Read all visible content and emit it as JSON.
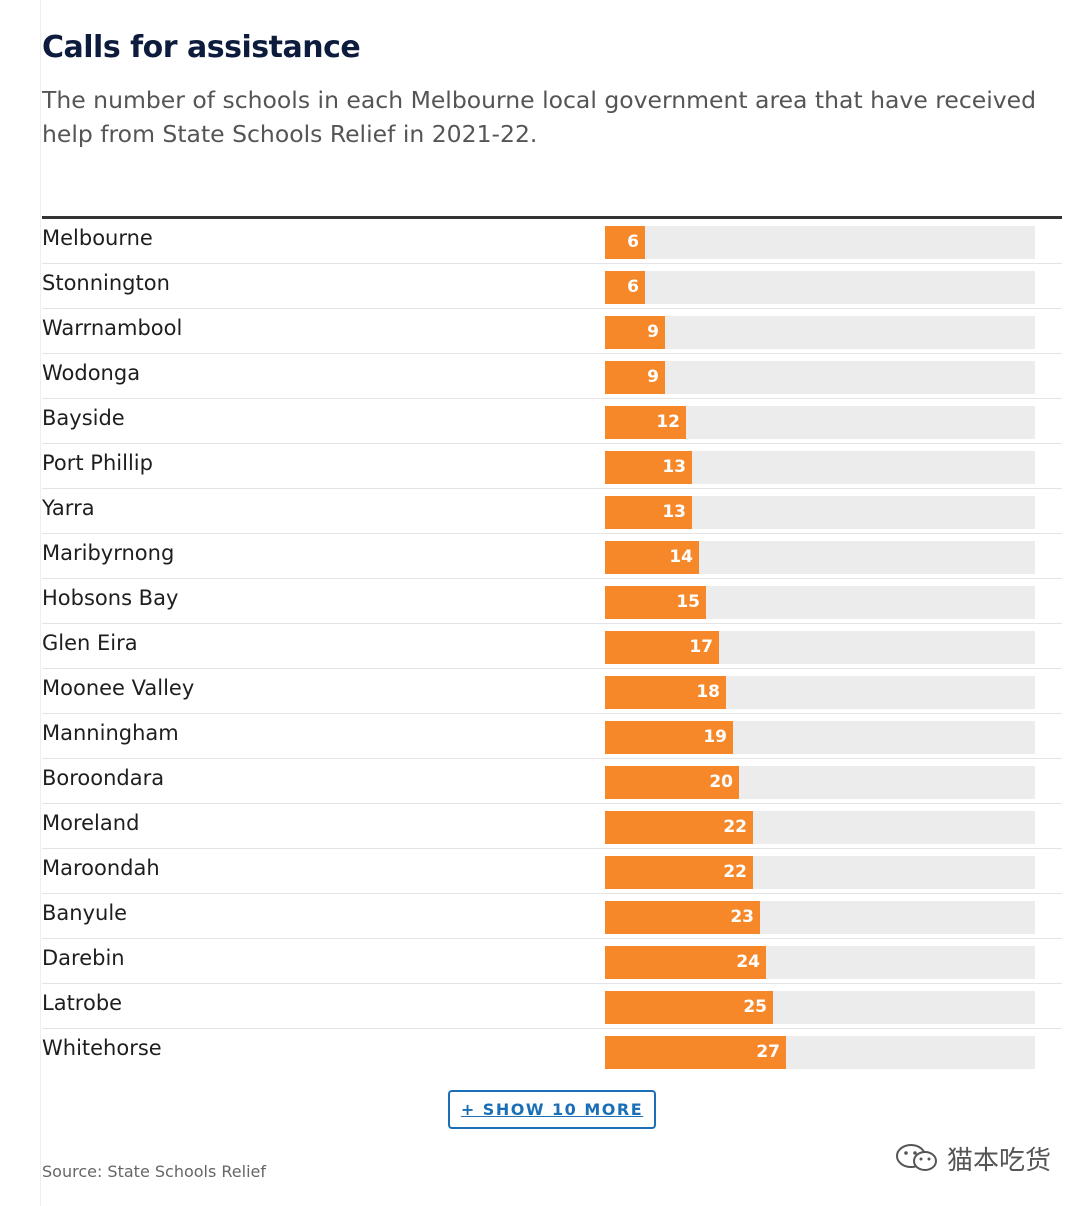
{
  "title": "Calls for assistance",
  "subtitle": "The number of schools in each Melbourne local government area that have received help from State Schools Relief in 2021-22.",
  "show_more_label": "+ SHOW 10 MORE",
  "source": "Source: State Schools Relief",
  "watermark": "猫本吃货",
  "colors": {
    "bar": "#f7882a",
    "track": "#ececec",
    "title": "#0d1c3d",
    "button": "#1a6fb7"
  },
  "chart_data": {
    "type": "bar",
    "orientation": "horizontal",
    "categories": [
      "Melbourne",
      "Stonnington",
      "Warrnambool",
      "Wodonga",
      "Bayside",
      "Port Phillip",
      "Yarra",
      "Maribyrnong",
      "Hobsons Bay",
      "Glen Eira",
      "Moonee Valley",
      "Manningham",
      "Boroondara",
      "Moreland",
      "Maroondah",
      "Banyule",
      "Darebin",
      "Latrobe",
      "Whitehorse"
    ],
    "values": [
      6,
      6,
      9,
      9,
      12,
      13,
      13,
      14,
      15,
      17,
      18,
      19,
      20,
      22,
      22,
      23,
      24,
      25,
      27
    ],
    "xlim": [
      0,
      64
    ],
    "grid": false
  }
}
